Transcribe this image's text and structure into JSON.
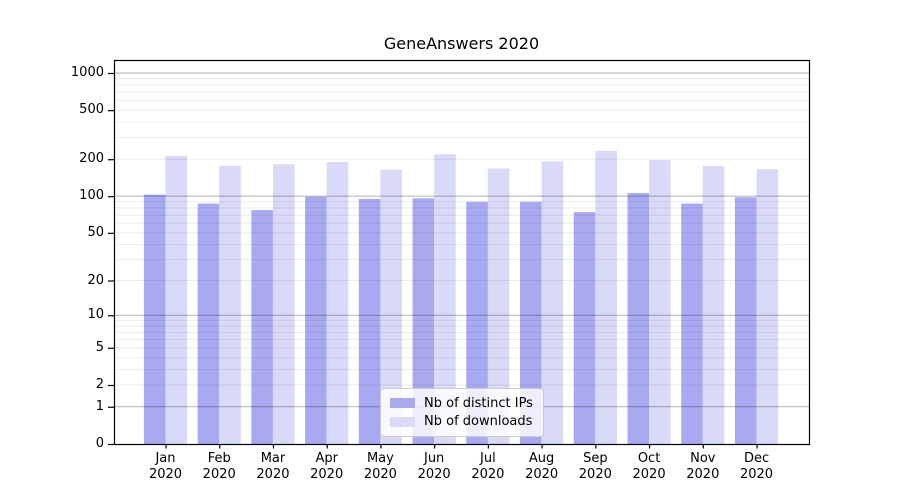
{
  "chart_data": {
    "type": "bar",
    "title": "GeneAnswers 2020",
    "categories": [
      {
        "month": "Jan",
        "year": "2020"
      },
      {
        "month": "Feb",
        "year": "2020"
      },
      {
        "month": "Mar",
        "year": "2020"
      },
      {
        "month": "Apr",
        "year": "2020"
      },
      {
        "month": "May",
        "year": "2020"
      },
      {
        "month": "Jun",
        "year": "2020"
      },
      {
        "month": "Jul",
        "year": "2020"
      },
      {
        "month": "Aug",
        "year": "2020"
      },
      {
        "month": "Sep",
        "year": "2020"
      },
      {
        "month": "Oct",
        "year": "2020"
      },
      {
        "month": "Nov",
        "year": "2020"
      },
      {
        "month": "Dec",
        "year": "2020"
      }
    ],
    "series": [
      {
        "name": "Nb of distinct IPs",
        "color": "#a9a9f2",
        "values": [
          103,
          87,
          77,
          99,
          95,
          96,
          90,
          90,
          74,
          106,
          87,
          98
        ]
      },
      {
        "name": "Nb of downloads",
        "color": "#d9d9f8",
        "values": [
          213,
          177,
          182,
          190,
          165,
          220,
          168,
          192,
          234,
          197,
          176,
          166
        ]
      }
    ],
    "xlabel": "",
    "ylabel": "",
    "yscale": "log1p",
    "y_ticks": [
      1000,
      500,
      200,
      100,
      50,
      20,
      10,
      5,
      2,
      1,
      0
    ],
    "ylim": [
      0,
      1275
    ],
    "grid": "both",
    "legend_position": "lower center"
  },
  "colors": {
    "major_grid": "rgba(0,0,0,0.30)",
    "minor_grid": "rgba(0,0,0,0.08)",
    "axis": "#000000",
    "background": "#ffffff"
  }
}
